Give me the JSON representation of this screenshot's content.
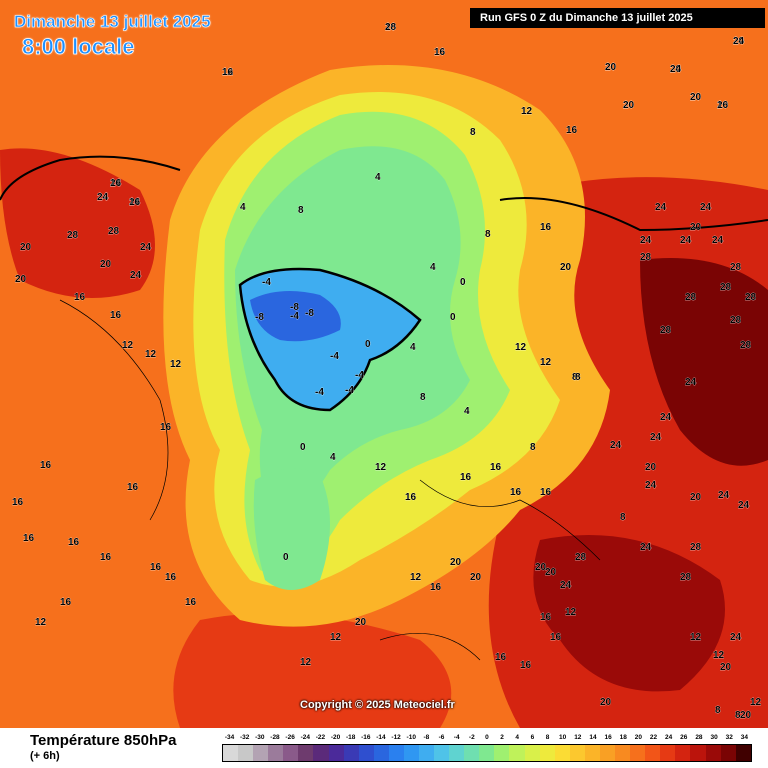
{
  "header": {
    "date": "Dimanche 13 juillet 2025",
    "time": "8:00 locale",
    "run": "Run GFS 0 Z du Dimanche 13 juillet 2025"
  },
  "copyright": "Copyright © 2025 Meteociel.fr",
  "footer": {
    "variable": "Température 850hPa",
    "step": "(+ 6h)"
  },
  "legend": {
    "values": [
      "-34",
      "-32",
      "-30",
      "-28",
      "-26",
      "-24",
      "-22",
      "-20",
      "-18",
      "-16",
      "-14",
      "-12",
      "-10",
      "-8",
      "-6",
      "-4",
      "-2",
      "0",
      "2",
      "4",
      "6",
      "8",
      "10",
      "12",
      "14",
      "16",
      "18",
      "20",
      "22",
      "24",
      "26",
      "28",
      "30",
      "32",
      "34"
    ],
    "colors": [
      "#d9d9d9",
      "#c8c8c8",
      "#b3a3b3",
      "#9b7b9b",
      "#8a5a8a",
      "#6e3b6e",
      "#5b2a7a",
      "#4b2a9a",
      "#3a3ab5",
      "#2f4fcf",
      "#2a66df",
      "#2a80ef",
      "#2f97f2",
      "#3fadf0",
      "#4fc3e8",
      "#5fd3d0",
      "#6fdfb0",
      "#7fe890",
      "#9ff070",
      "#bff25a",
      "#d9f04a",
      "#eeea3c",
      "#fbdc34",
      "#fcc82e",
      "#fbb428",
      "#f9a024",
      "#f88a20",
      "#f6701c",
      "#f25518",
      "#e63a14",
      "#d42410",
      "#bb140c",
      "#9a0a08",
      "#7a0404",
      "#400000"
    ]
  },
  "map": {
    "labels": [
      {
        "v": "16"
      },
      {
        "v": "16"
      },
      {
        "v": "12"
      },
      {
        "v": "20"
      },
      {
        "v": "20"
      },
      {
        "v": "20"
      },
      {
        "v": "20"
      },
      {
        "v": "20"
      },
      {
        "v": "20"
      },
      {
        "v": "24"
      },
      {
        "v": "24"
      },
      {
        "v": "24"
      },
      {
        "v": "28"
      },
      {
        "v": "28"
      },
      {
        "v": "24"
      },
      {
        "v": "20"
      },
      {
        "v": "24"
      },
      {
        "v": "20"
      },
      {
        "v": "16"
      },
      {
        "v": "16"
      },
      {
        "v": "12"
      },
      {
        "v": "12"
      },
      {
        "v": "12"
      },
      {
        "v": "16"
      },
      {
        "v": "20"
      },
      {
        "v": "16"
      },
      {
        "v": "16"
      },
      {
        "v": "16"
      },
      {
        "v": "16"
      },
      {
        "v": "16"
      },
      {
        "v": "16"
      },
      {
        "v": "16"
      },
      {
        "v": "16"
      },
      {
        "v": "16"
      },
      {
        "v": "16"
      },
      {
        "v": "12"
      },
      {
        "v": "12"
      },
      {
        "v": "8"
      },
      {
        "v": "8"
      },
      {
        "v": "8"
      },
      {
        "v": "8"
      },
      {
        "v": "4"
      },
      {
        "v": "4"
      },
      {
        "v": "4"
      },
      {
        "v": "4"
      },
      {
        "v": "0"
      },
      {
        "v": "0"
      },
      {
        "v": "0"
      },
      {
        "v": "0"
      },
      {
        "v": "-4"
      },
      {
        "v": "-4"
      },
      {
        "v": "-4"
      },
      {
        "v": "-4"
      },
      {
        "v": "-8"
      },
      {
        "v": "-8"
      },
      {
        "v": "-8"
      },
      {
        "v": "-4"
      },
      {
        "v": "-4"
      },
      {
        "v": "0"
      },
      {
        "v": "0"
      },
      {
        "v": "4"
      },
      {
        "v": "4"
      },
      {
        "v": "8"
      },
      {
        "v": "8"
      },
      {
        "v": "8"
      },
      {
        "v": "12"
      },
      {
        "v": "12"
      },
      {
        "v": "12"
      },
      {
        "v": "12"
      },
      {
        "v": "12"
      },
      {
        "v": "12"
      },
      {
        "v": "16"
      },
      {
        "v": "16"
      },
      {
        "v": "16"
      },
      {
        "v": "16"
      },
      {
        "v": "16"
      },
      {
        "v": "16"
      },
      {
        "v": "16"
      },
      {
        "v": "20"
      },
      {
        "v": "20"
      },
      {
        "v": "20"
      },
      {
        "v": "20"
      },
      {
        "v": "20"
      },
      {
        "v": "20"
      },
      {
        "v": "20"
      },
      {
        "v": "24"
      },
      {
        "v": "24"
      },
      {
        "v": "24"
      },
      {
        "v": "24"
      },
      {
        "v": "24"
      },
      {
        "v": "28"
      },
      {
        "v": "28"
      },
      {
        "v": "28"
      },
      {
        "v": "28"
      },
      {
        "v": "28"
      },
      {
        "v": "28"
      },
      {
        "v": "28"
      },
      {
        "v": "28"
      },
      {
        "v": "24"
      },
      {
        "v": "24"
      },
      {
        "v": "24"
      },
      {
        "v": "20"
      },
      {
        "v": "20"
      },
      {
        "v": "24"
      },
      {
        "v": "24"
      },
      {
        "v": "24"
      },
      {
        "v": "28"
      },
      {
        "v": "28"
      },
      {
        "v": "28"
      },
      {
        "v": "24"
      },
      {
        "v": "24"
      },
      {
        "v": "20"
      },
      {
        "v": "20"
      },
      {
        "v": "16"
      },
      {
        "v": "16"
      },
      {
        "v": "16"
      },
      {
        "v": "16"
      },
      {
        "v": "16"
      },
      {
        "v": "12"
      },
      {
        "v": "12"
      },
      {
        "v": "12"
      },
      {
        "v": "12"
      },
      {
        "v": "8"
      },
      {
        "v": "8"
      },
      {
        "v": "8"
      },
      {
        "v": "20"
      },
      {
        "v": "24"
      },
      {
        "v": "24"
      },
      {
        "v": "28"
      },
      {
        "v": "16"
      },
      {
        "v": "16"
      },
      {
        "v": "20"
      },
      {
        "v": "24"
      },
      {
        "v": "24"
      },
      {
        "v": "20"
      },
      {
        "v": "20"
      },
      {
        "v": "16"
      },
      {
        "v": "16"
      },
      {
        "v": "24"
      },
      {
        "v": "16"
      }
    ]
  }
}
